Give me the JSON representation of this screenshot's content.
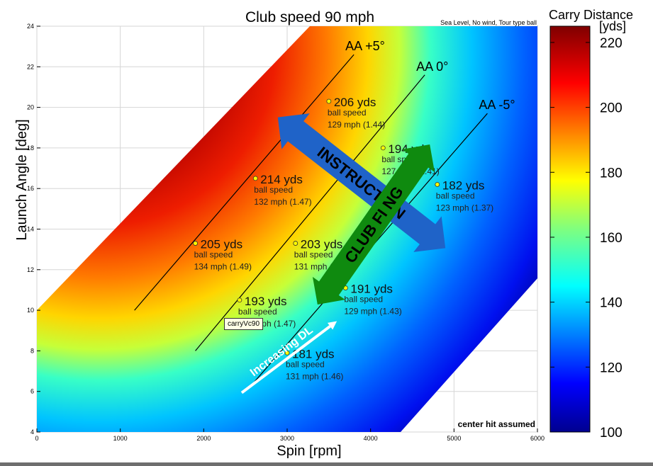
{
  "chart_data": {
    "type": "heatmap",
    "title": "Club speed 90 mph",
    "subtitle": "Sea Level, No wind, Tour type ball",
    "xlabel": "Spin [rpm]",
    "ylabel": "Launch Angle [deg]",
    "xlim": [
      0,
      6000
    ],
    "ylim": [
      4,
      24
    ],
    "xticks": [
      0,
      1000,
      2000,
      3000,
      4000,
      5000,
      6000
    ],
    "yticks": [
      4,
      6,
      8,
      10,
      12,
      14,
      16,
      18,
      20,
      22,
      24
    ],
    "grid": true,
    "colorbar": {
      "label": "Carry Distance",
      "units": "[yds]",
      "range": [
        100,
        225
      ],
      "ticks": [
        100,
        120,
        140,
        160,
        180,
        200,
        220
      ],
      "colormap": "jet"
    },
    "attack_angle_lines": [
      {
        "label": "AA +5°",
        "start": [
          1170,
          10.0
        ],
        "end": [
          3800,
          22.6
        ]
      },
      {
        "label": "AA 0°",
        "start": [
          1900,
          8.0
        ],
        "end": [
          4650,
          21.6
        ]
      },
      {
        "label": "AA -5°",
        "start": [
          2550,
          6.2
        ],
        "end": [
          5400,
          19.7
        ]
      }
    ],
    "points": [
      {
        "spin": 3500,
        "launch": 20.3,
        "carry": "206 yds",
        "speed": "129 mph (1.44)"
      },
      {
        "spin": 2620,
        "launch": 16.5,
        "carry": "214 yds",
        "speed": "132 mph (1.47)"
      },
      {
        "spin": 1900,
        "launch": 13.3,
        "carry": "205 yds",
        "speed": "134 mph (1.49)"
      },
      {
        "spin": 4150,
        "launch": 18.0,
        "carry": "194 yds",
        "speed": "127 mph (1.41)"
      },
      {
        "spin": 3100,
        "launch": 13.3,
        "carry": "203 yds",
        "speed": "131 mph (1.46)"
      },
      {
        "spin": 2430,
        "launch": 10.5,
        "carry": "193 yds",
        "speed": "132 mph (1.47)"
      },
      {
        "spin": 4800,
        "launch": 16.2,
        "carry": "182 yds",
        "speed": "123 mph (1.37)"
      },
      {
        "spin": 3700,
        "launch": 11.1,
        "carry": "191 yds",
        "speed": "129 mph (1.43)"
      },
      {
        "spin": 3000,
        "launch": 7.9,
        "carry": "181 yds",
        "speed": "131 mph (1.46)"
      }
    ],
    "annotations": {
      "instruction": "INSTRUCTION",
      "club_fitting": "CLUB FI  NG",
      "increasing_dl": "Increasing DL",
      "center_hit": "center hit assumed",
      "ball_speed_label": "ball speed",
      "datatip": "carryVc90"
    },
    "colors": {
      "instruction_arrow": "#1f63c8",
      "club_fitting_arrow": "#0f8a0f",
      "increasing_dl": "#ffffff"
    }
  }
}
